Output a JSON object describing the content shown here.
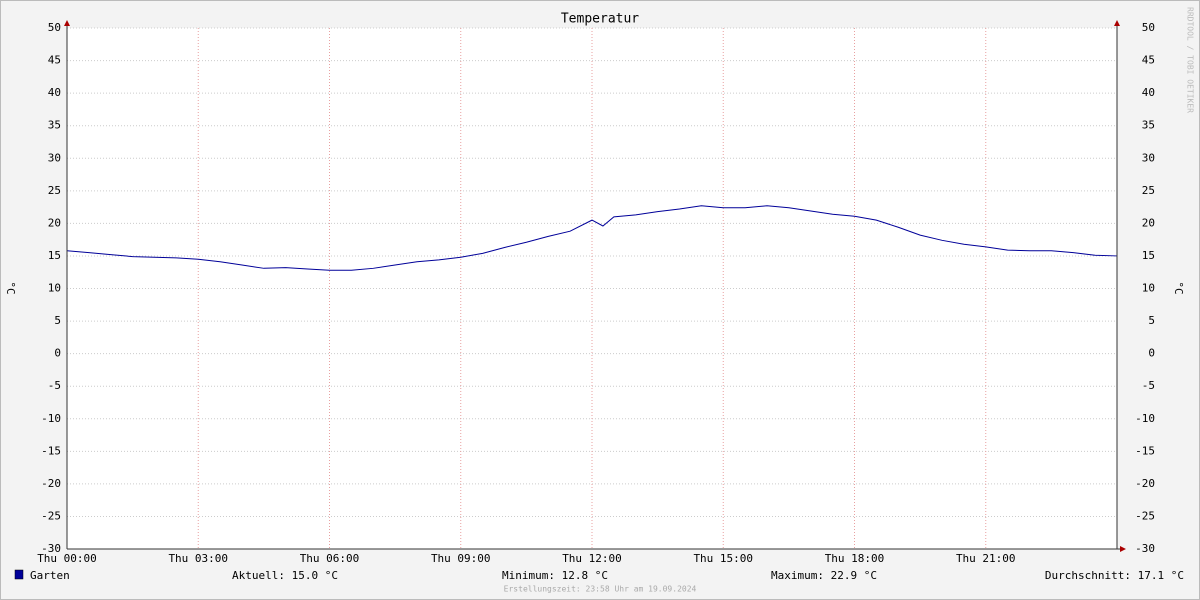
{
  "chart_data": {
    "type": "line",
    "title": "Temperatur",
    "y_label": "°C",
    "y2_label": "°C",
    "watermark": "RRDTOOL / TOBI OETIKER",
    "x": [
      0,
      0.5,
      1,
      1.5,
      2,
      2.5,
      3,
      3.5,
      4,
      4.5,
      5,
      5.5,
      6,
      6.5,
      7,
      7.5,
      8,
      8.5,
      9,
      9.5,
      10,
      10.5,
      11,
      11.5,
      12,
      12.25,
      12.5,
      13,
      13.5,
      14,
      14.5,
      15,
      15.5,
      16,
      16.5,
      17,
      17.5,
      18,
      18.5,
      19,
      19.5,
      20,
      20.5,
      21,
      21.5,
      22,
      22.5,
      23,
      23.5,
      24
    ],
    "series": [
      {
        "name": "Garten",
        "color": "#000099",
        "values": [
          15.8,
          15.5,
          15.2,
          14.9,
          14.8,
          14.7,
          14.5,
          14.1,
          13.6,
          13.1,
          13.2,
          13.0,
          12.8,
          12.8,
          13.1,
          13.6,
          14.1,
          14.4,
          14.8,
          15.4,
          16.3,
          17.1,
          18.0,
          18.8,
          20.5,
          19.6,
          21.0,
          21.3,
          21.8,
          22.2,
          22.7,
          22.4,
          22.4,
          22.7,
          22.4,
          21.9,
          21.4,
          21.1,
          20.5,
          19.4,
          18.2,
          17.4,
          16.8,
          16.4,
          15.9,
          15.8,
          15.8,
          15.5,
          15.1,
          15.0
        ]
      }
    ],
    "xlim": [
      0,
      24
    ],
    "xticks": [
      {
        "value": 0,
        "label": "Thu 00:00"
      },
      {
        "value": 3,
        "label": "Thu 03:00"
      },
      {
        "value": 6,
        "label": "Thu 06:00"
      },
      {
        "value": 9,
        "label": "Thu 09:00"
      },
      {
        "value": 12,
        "label": "Thu 12:00"
      },
      {
        "value": 15,
        "label": "Thu 15:00"
      },
      {
        "value": 18,
        "label": "Thu 18:00"
      },
      {
        "value": 21,
        "label": "Thu 21:00"
      }
    ],
    "ylim": [
      -30,
      50
    ],
    "yticks": [
      -30,
      -25,
      -20,
      -15,
      -10,
      -5,
      0,
      5,
      10,
      15,
      20,
      25,
      30,
      35,
      40,
      45,
      50
    ],
    "grid": true,
    "stats": [
      "Aktuell: 15.0 °C",
      "Minimum: 12.8 °C",
      "Maximum: 22.9 °C",
      "Durchschnitt: 17.1 °C"
    ],
    "footer": "Erstellungszeit: 23:58 Uhr am 19.09.2024"
  }
}
